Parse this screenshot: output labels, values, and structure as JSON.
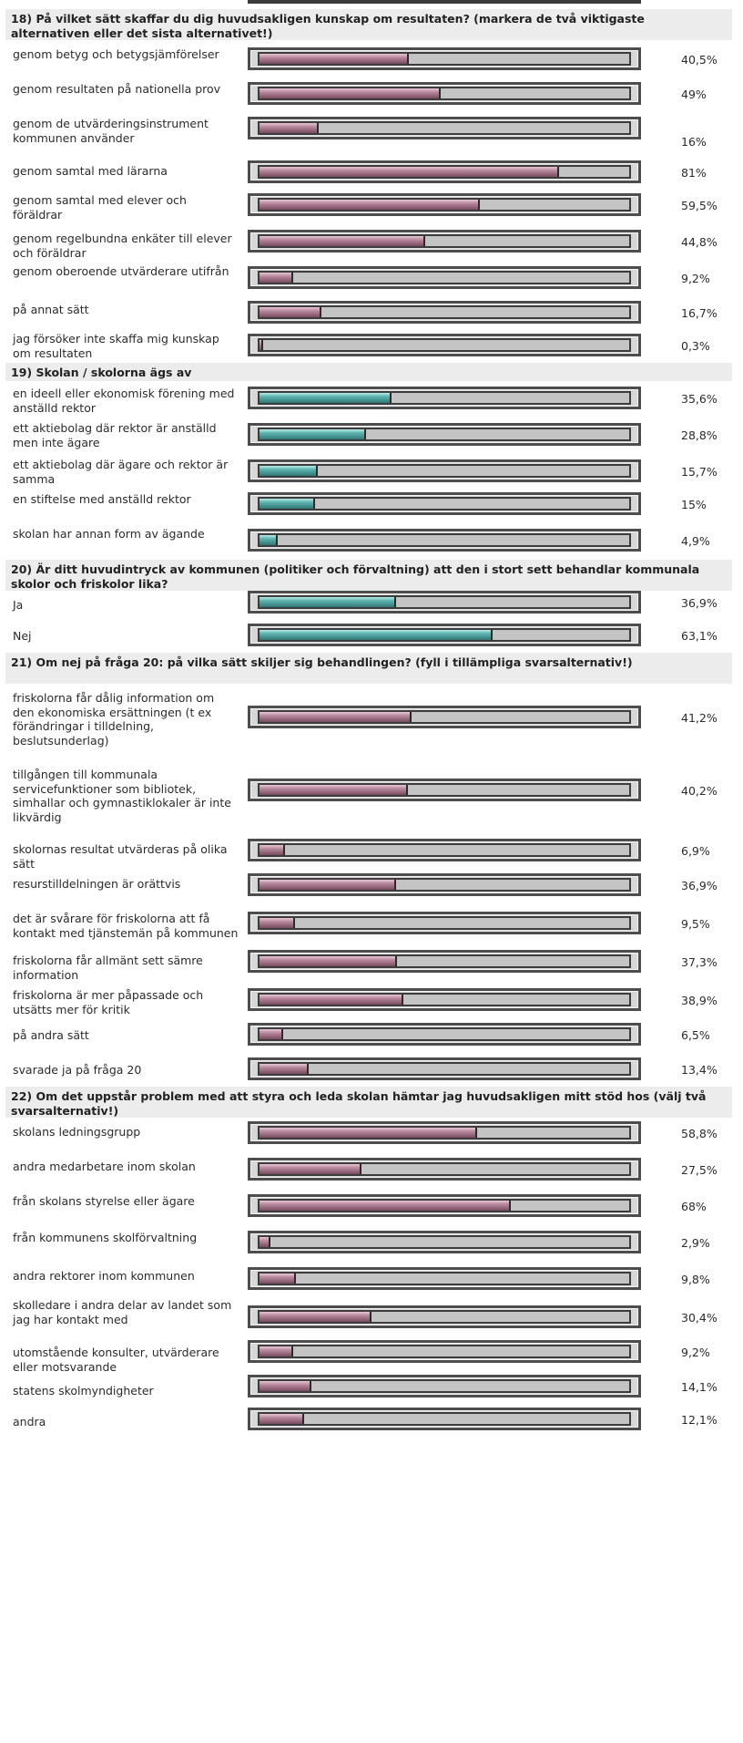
{
  "colors": {
    "pink_series": "#9e6680",
    "teal_series": "#4aa6a2",
    "header_bg": "#ececec"
  },
  "chart_data": [
    {
      "type": "bar",
      "title": "18) På vilket sätt skaffar du dig huvudsakligen kunskap om resultaten? (markera de två viktigaste alternativen eller det sista alternativet!)",
      "color": "pink",
      "categories": [
        "genom betyg och betygsjämförelser",
        "genom resultaten på nationella prov",
        "genom de utvärderingsinstrument kommunen använder",
        "genom samtal med lärarna",
        "genom samtal med elever och föräldrar",
        "genom regelbundna enkäter till elever och föräldrar",
        "genom oberoende utvärderare utifrån",
        "på annat sätt",
        "jag försöker inte skaffa mig kunskap om resultaten"
      ],
      "values": [
        40.5,
        49,
        16,
        81,
        59.5,
        44.8,
        9.2,
        16.7,
        0.3
      ],
      "value_labels": [
        "40,5%",
        "49%",
        "16%",
        "81%",
        "59,5%",
        "44,8%",
        "9,2%",
        "16,7%",
        "0,3%"
      ]
    },
    {
      "type": "bar",
      "title": "19) Skolan / skolorna ägs av",
      "color": "teal",
      "categories": [
        "en ideell eller ekonomisk förening med anställd rektor",
        "ett aktiebolag där rektor är anställd men inte ägare",
        "ett aktiebolag där ägare och rektor är samma",
        "en stiftelse med anställd rektor",
        "skolan har annan form av ägande"
      ],
      "values": [
        35.6,
        28.8,
        15.7,
        15,
        4.9
      ],
      "value_labels": [
        "35,6%",
        "28,8%",
        "15,7%",
        "15%",
        "4,9%"
      ]
    },
    {
      "type": "bar",
      "title": "20) Är ditt huvudintryck av kommunen (politiker och förvaltning) att den i stort sett behandlar kommunala skolor och friskolor lika?",
      "color": "teal",
      "categories": [
        "Ja",
        "Nej"
      ],
      "values": [
        36.9,
        63.1
      ],
      "value_labels": [
        "36,9%",
        "63,1%"
      ]
    },
    {
      "type": "bar",
      "title": "21) Om nej på fråga 20: på vilka sätt skiljer sig behandlingen? (fyll i tillämpliga svarsalternativ!)",
      "color": "pink",
      "categories": [
        "friskolorna får dålig information om den ekonomiska ersättningen (t ex förändringar i tilldelning, beslutsunderlag)",
        "tillgången till kommunala servicefunktioner som bibliotek, simhallar och gymnastiklokaler är inte likvärdig",
        "skolornas resultat utvärderas på olika sätt",
        "resurstilldelningen är orättvis",
        "det är svårare för friskolorna att få kontakt med tjänstemän på kommunen",
        "friskolorna får allmänt sett sämre information",
        "friskolorna är mer påpassade och utsätts mer för kritik",
        "på andra sätt",
        "svarade ja på fråga 20"
      ],
      "values": [
        41.2,
        40.2,
        6.9,
        36.9,
        9.5,
        37.3,
        38.9,
        6.5,
        13.4
      ],
      "value_labels": [
        "41,2%",
        "40,2%",
        "6,9%",
        "36,9%",
        "9,5%",
        "37,3%",
        "38,9%",
        "6,5%",
        "13,4%"
      ]
    },
    {
      "type": "bar",
      "title": "22) Om det uppstår problem med att styra och leda skolan hämtar jag huvudsakligen mitt stöd hos (välj två svarsalternativ!)",
      "color": "pink",
      "categories": [
        "skolans ledningsgrupp",
        "andra medarbetare inom skolan",
        "från skolans styrelse eller ägare",
        "från kommunens skolförvaltning",
        "andra rektorer inom kommunen",
        "skolledare i andra delar av landet som jag har kontakt med",
        "utomstående konsulter, utvärderare eller motsvarande",
        "statens skolmyndigheter",
        "andra"
      ],
      "values": [
        58.8,
        27.5,
        68,
        2.9,
        9.8,
        30.4,
        9.2,
        14.1,
        12.1
      ],
      "value_labels": [
        "58,8%",
        "27,5%",
        "68%",
        "2,9%",
        "9,8%",
        "30,4%",
        "9,2%",
        "14,1%",
        "12,1%"
      ]
    }
  ]
}
